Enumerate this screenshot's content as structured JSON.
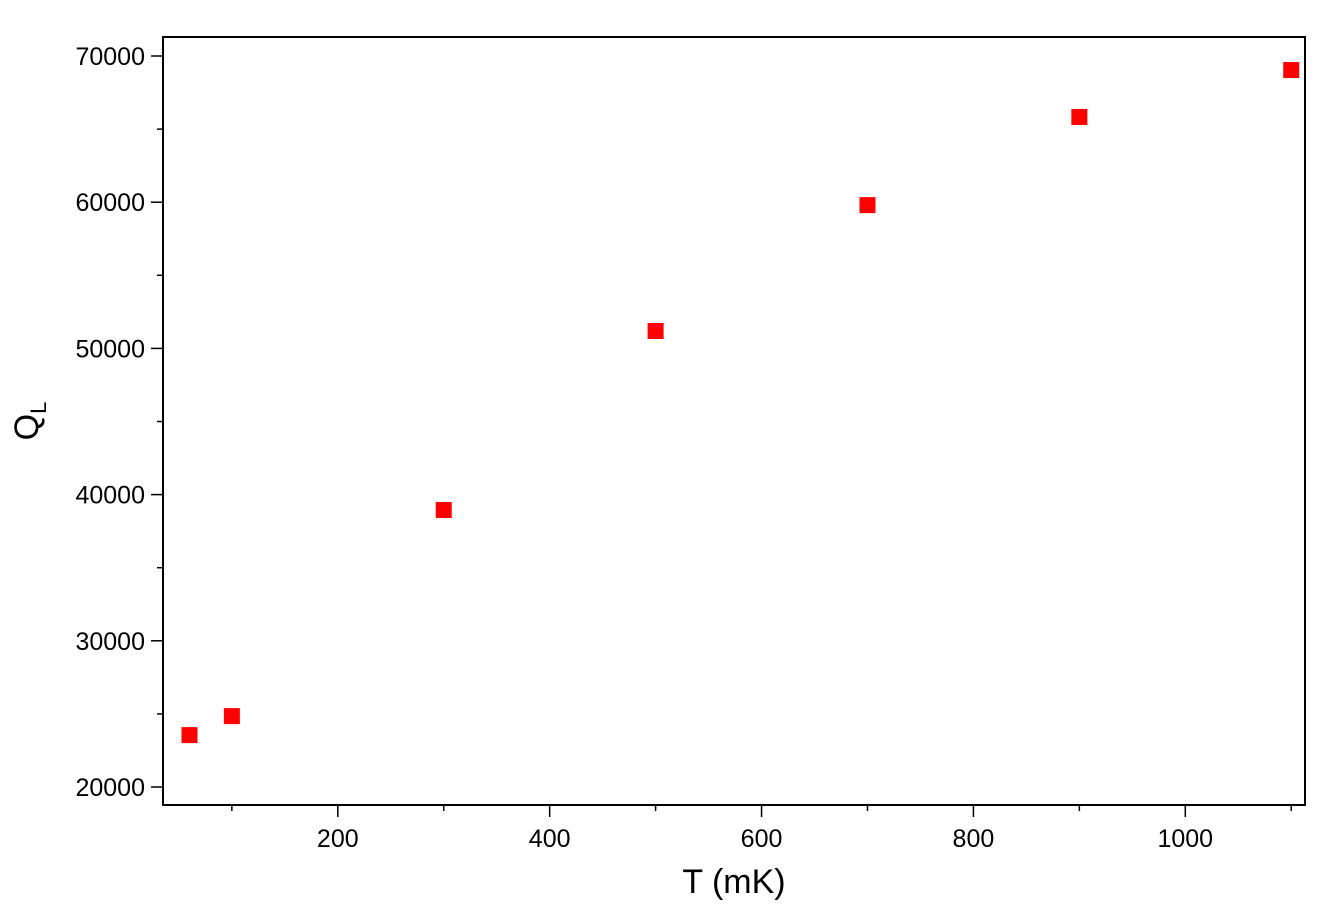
{
  "chart_data": {
    "type": "scatter",
    "xlabel": "T (mK)",
    "ylabel": "Q",
    "ylabel_subscript": "L",
    "x": [
      60,
      100,
      300,
      500,
      700,
      900,
      1100
    ],
    "series": [
      {
        "color": "#ff0000",
        "marker": "square",
        "values": [
          23550,
          24850,
          38950,
          51190,
          59800,
          65830,
          69040
        ]
      }
    ],
    "xlim": [
      35,
      1113
    ],
    "ylim": [
      18770,
      71300
    ],
    "xticks": [
      200,
      400,
      600,
      800,
      1000
    ],
    "xminorticks": [
      100,
      300,
      500,
      700,
      900,
      1100
    ],
    "yticks": [
      20000,
      30000,
      40000,
      50000,
      60000,
      70000
    ],
    "yminorticks": [
      25000,
      35000,
      45000,
      55000,
      65000
    ],
    "grid": false
  }
}
